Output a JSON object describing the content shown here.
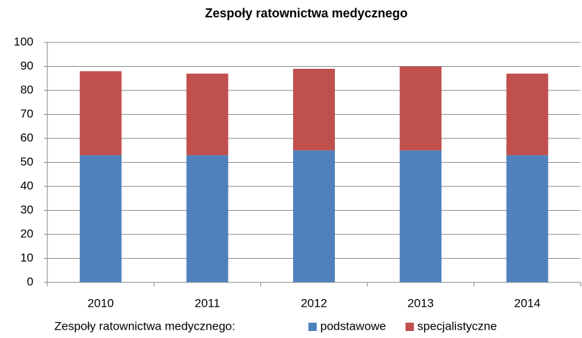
{
  "chart_data": {
    "type": "stacked_bar",
    "title": "Zespoły ratownictwa medycznego",
    "categories": [
      "2010",
      "2011",
      "2012",
      "2013",
      "2014"
    ],
    "series": [
      {
        "name": "podstawowe",
        "color": "#4f81bd",
        "values": [
          53,
          53,
          55,
          55,
          53
        ]
      },
      {
        "name": "specjalistyczne",
        "color": "#c0504d",
        "values": [
          35,
          34,
          34,
          35,
          34
        ]
      }
    ],
    "legend_title": "Zespoły ratownictwa medycznego:",
    "legend": "bottom",
    "ylim": [
      0,
      100
    ],
    "yticks": [
      0,
      10,
      20,
      30,
      40,
      50,
      60,
      70,
      80,
      90,
      100
    ],
    "grid": true
  }
}
